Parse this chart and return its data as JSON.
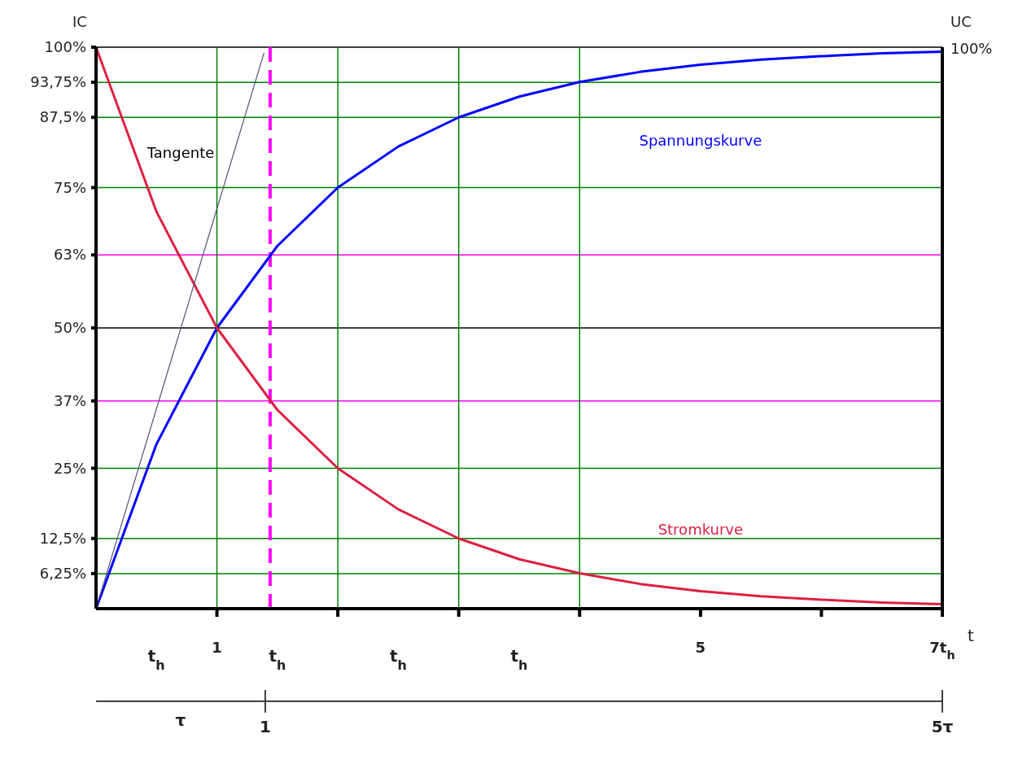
{
  "chart_data": {
    "type": "line",
    "ylabel": "IC",
    "y2label": "UC",
    "xlabel": "t",
    "xlim": [
      0,
      7
    ],
    "xticks": [
      {
        "value": 1,
        "label": "1"
      },
      {
        "value": 2,
        "label": null
      },
      {
        "value": 3,
        "label": null
      },
      {
        "value": 4,
        "label": null
      },
      {
        "value": 5,
        "label": "5"
      },
      {
        "value": 6,
        "label": null
      },
      {
        "value": 7,
        "label": "7t$_{h}$"
      }
    ],
    "x2lim": [
      0,
      5
    ],
    "x2ticks": [
      {
        "value": 1,
        "label": "1"
      },
      {
        "value": 5,
        "label": "5τ"
      }
    ],
    "ylim": [
      0,
      100
    ],
    "yticks": [
      {
        "value": 6.25,
        "label": "6,25%"
      },
      {
        "value": 12.5,
        "label": "12,5%"
      },
      {
        "value": 25,
        "label": "25%"
      },
      {
        "value": 37,
        "label": "37%"
      },
      {
        "value": 50,
        "label": "50%"
      },
      {
        "value": 63,
        "label": "63%"
      },
      {
        "value": 75,
        "label": "75%"
      },
      {
        "value": 87.5,
        "label": "87,5%"
      },
      {
        "value": 93.75,
        "label": "93,75%"
      },
      {
        "value": 100,
        "label": "100%"
      }
    ],
    "marker": "none",
    "series": [
      {
        "name": "Spannungskurve",
        "color": "#0000ff",
        "x": [
          0,
          0.5,
          1,
          1.5,
          2,
          2.5,
          3,
          3.5,
          4,
          4.5,
          5,
          5.5,
          6,
          6.5,
          7
        ],
        "values": [
          0,
          29.3,
          50,
          64.6,
          75,
          82.3,
          87.5,
          91.2,
          93.8,
          95.6,
          96.9,
          97.8,
          98.4,
          98.9,
          99.2
        ]
      },
      {
        "name": "Stromkurve",
        "color": "#dc2040",
        "x": [
          0,
          0.5,
          1,
          1.5,
          2,
          2.5,
          3,
          3.5,
          4,
          4.5,
          5,
          5.5,
          6,
          6.5,
          7
        ],
        "values": [
          100,
          70.7,
          50,
          35.4,
          25,
          17.7,
          12.5,
          8.8,
          6.3,
          4.4,
          3.1,
          2.2,
          1.6,
          1.1,
          0.8
        ]
      },
      {
        "color": "#50507a",
        "x": [
          0,
          1.39
        ],
        "values": [
          0,
          99
        ]
      }
    ],
    "ref_lines": [
      {
        "axis": "y",
        "value": 100,
        "color": "#000000"
      },
      {
        "axis": "y",
        "value": 93.75,
        "color": "#008000"
      },
      {
        "axis": "y",
        "value": 87.5,
        "color": "#008000"
      },
      {
        "axis": "y",
        "value": 75,
        "color": "#008000"
      },
      {
        "axis": "y",
        "value": 63,
        "color": "#ff00ff"
      },
      {
        "axis": "y",
        "value": 50,
        "color": "#000000"
      },
      {
        "axis": "y",
        "value": 37,
        "color": "#ff00ff"
      },
      {
        "axis": "y",
        "value": 25,
        "color": "#008000"
      },
      {
        "axis": "y",
        "value": 12.5,
        "color": "#008000"
      },
      {
        "axis": "y",
        "value": 6.25,
        "color": "#008000"
      },
      {
        "axis": "x",
        "value": 1,
        "color": "#008000"
      },
      {
        "axis": "x",
        "value": 2,
        "color": "#008000"
      },
      {
        "axis": "x",
        "value": 3,
        "color": "#008000"
      },
      {
        "axis": "x",
        "value": 4,
        "color": "#008000"
      },
      {
        "axis": "x",
        "value": 1.44,
        "color": "#ff00ff",
        "line_style": "dashed"
      }
    ],
    "annotations": [
      "Tangente",
      "t$_{h}$",
      "t$_{h}$",
      "t$_{h}$",
      "t$_{h}$",
      "τ",
      "100%"
    ]
  }
}
